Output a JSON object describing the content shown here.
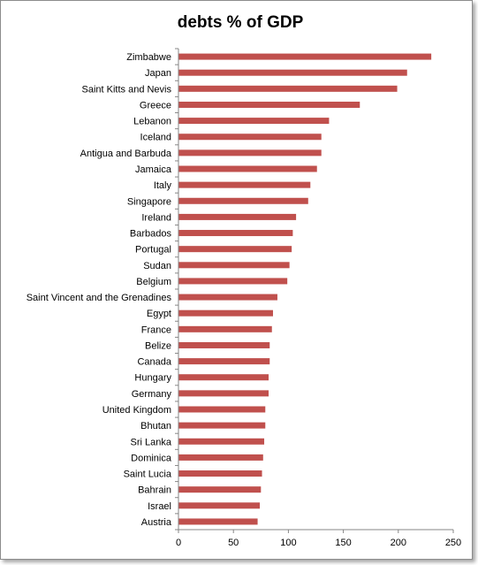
{
  "chart_data": {
    "type": "bar",
    "orientation": "horizontal",
    "title": "debts % of GDP",
    "xlabel": "",
    "ylabel": "",
    "xlim": [
      0,
      250
    ],
    "x_ticks": [
      0,
      50,
      100,
      150,
      200,
      250
    ],
    "grid": false,
    "legend": "none",
    "bar_color": "#c0504d",
    "categories": [
      "Zimbabwe",
      "Japan",
      "Saint Kitts and Nevis",
      "Greece",
      "Lebanon",
      "Iceland",
      "Antigua and Barbuda",
      "Jamaica",
      "Italy",
      "Singapore",
      "Ireland",
      "Barbados",
      "Portugal",
      "Sudan",
      "Belgium",
      "Saint Vincent and the Grenadines",
      "Egypt",
      "France",
      "Belize",
      "Canada",
      "Hungary",
      "Germany",
      "United Kingdom",
      "Bhutan",
      "Sri Lanka",
      "Dominica",
      "Saint Lucia",
      "Bahrain",
      "Israel",
      "Austria"
    ],
    "values": [
      230,
      208,
      199,
      165,
      137,
      130,
      130,
      126,
      120,
      118,
      107,
      104,
      103,
      101,
      99,
      90,
      86,
      85,
      83,
      83,
      82,
      82,
      79,
      79,
      78,
      77,
      76,
      75,
      74,
      72
    ]
  }
}
